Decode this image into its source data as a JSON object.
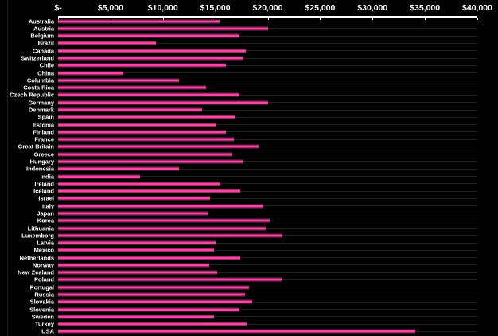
{
  "chart_data": {
    "type": "bar",
    "orientation": "horizontal-bars",
    "title": "",
    "legend": "none",
    "grid": "thin gray line through each category row, full plot width",
    "xlim": [
      0,
      40000
    ],
    "x_tick_values": [
      0,
      5000,
      10000,
      15000,
      20000,
      25000,
      30000,
      35000,
      40000
    ],
    "x_tick_labels": [
      "$-",
      "$5,000",
      "$10,000",
      "$15,000",
      "$20,000",
      "$25,000",
      "$30,000",
      "$35,000",
      "$40,000"
    ],
    "categories": [
      "Australia",
      "Austria",
      "Belgium",
      "Brazil",
      "Canada",
      "Switzerland",
      "Chile",
      "China",
      "Columbia",
      "Costa Rica",
      "Czech Republic",
      "Germany",
      "Denmark",
      "Spain",
      "Estonia",
      "Finland",
      "France",
      "Great Britain",
      "Greece",
      "Hungary",
      "Indonesia",
      "India",
      "Ireland",
      "Iceland",
      "Israel",
      "Italy",
      "Japan",
      "Korea",
      "Lithuania",
      "Luxemborg",
      "Latvia",
      "Mexico",
      "Netherlands",
      "Norway",
      "New Zealand",
      "Poland",
      "Portugal",
      "Russia",
      "Slovakia",
      "Slovenia",
      "Sweden",
      "Turkey",
      "USA"
    ],
    "values": [
      15400,
      20000,
      17300,
      9300,
      17900,
      17600,
      16000,
      6200,
      11500,
      14100,
      17300,
      20000,
      13700,
      16900,
      15100,
      16000,
      16800,
      19100,
      16600,
      17600,
      11500,
      7800,
      15500,
      17400,
      14500,
      19600,
      14300,
      20200,
      19800,
      21400,
      15000,
      14900,
      17400,
      14400,
      15200,
      21300,
      18200,
      17800,
      18500,
      17300,
      14900,
      18000,
      34100
    ],
    "colors": {
      "background": "#000000",
      "bar_fill": "#f2419b",
      "bar_edge": "#8d1f5d",
      "axis": "#ffffff",
      "category_gridline": "#222222",
      "label_text": "#ffffff"
    }
  },
  "layout_note_values_are_dollars": "values estimated from axis gridlines"
}
